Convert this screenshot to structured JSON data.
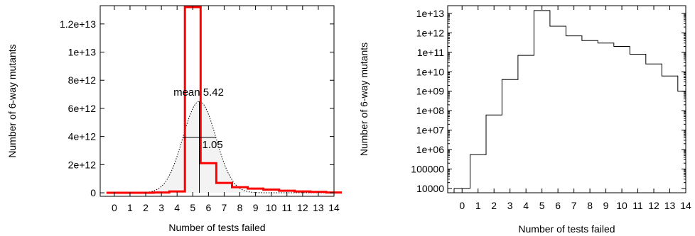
{
  "chart_data": [
    {
      "type": "bar",
      "ylabel": "Number of 6-way mutants",
      "xlabel": "Number of tests failed",
      "x_tick_labels": [
        "0",
        "1",
        "2",
        "3",
        "4",
        "5",
        "6",
        "7",
        "8",
        "9",
        "10",
        "11",
        "12",
        "13",
        "14"
      ],
      "y_tick_labels": [
        "0",
        "2e+12",
        "4e+12",
        "6e+12",
        "8e+12",
        "1e+13",
        "1.2e+13"
      ],
      "xlim": [
        -0.9,
        14
      ],
      "ylim": [
        -250000000000.0,
        13300000000000.0
      ],
      "series": [
        {
          "style": "step-histogram",
          "color": "#ff0000",
          "x": [
            0,
            1,
            2,
            3,
            4,
            5,
            6,
            7,
            8,
            9,
            10,
            11,
            12,
            13,
            14
          ],
          "values": [
            0,
            0,
            0,
            20000000000.0,
            100000000000.0,
            13200000000000.0,
            2100000000000.0,
            700000000000.0,
            400000000000.0,
            300000000000.0,
            230000000000.0,
            150000000000.0,
            100000000000.0,
            60000000000.0,
            20000000000.0
          ]
        },
        {
          "style": "gaussian-fit",
          "color": "#000000",
          "mean": 5.42,
          "sd": 1.05,
          "peak": 6500000000000.0
        }
      ],
      "annotations": {
        "mean_label": "mean 5.42",
        "sd_label": "1.05"
      },
      "grid": false
    },
    {
      "type": "bar",
      "scale": "log",
      "ylabel": "Number of 6-way mutants",
      "xlabel": "Number of tests failed",
      "x_tick_labels": [
        "0",
        "1",
        "2",
        "3",
        "4",
        "5",
        "6",
        "7",
        "8",
        "9",
        "10",
        "11",
        "12",
        "13",
        "14"
      ],
      "y_tick_labels": [
        "10000",
        "100000",
        "1e+06",
        "1e+07",
        "1e+08",
        "1e+09",
        "1e+10",
        "1e+11",
        "1e+12",
        "1e+13"
      ],
      "xlim": [
        -0.9,
        14
      ],
      "ylim": [
        6000,
        25000000000000.0
      ],
      "series": [
        {
          "style": "step-histogram",
          "color": "#000000",
          "x": [
            0,
            1,
            2,
            3,
            4,
            5,
            6,
            7,
            8,
            9,
            10,
            11,
            12,
            13,
            14
          ],
          "values": [
            10000.0,
            550000.0,
            60000000.0,
            4000000000.0,
            70000000000.0,
            14000000000000.0,
            2200000000000.0,
            700000000000.0,
            400000000000.0,
            300000000000.0,
            200000000000.0,
            80000000000.0,
            25000000000.0,
            6000000000.0,
            1000000000.0
          ]
        }
      ],
      "grid": false
    }
  ]
}
